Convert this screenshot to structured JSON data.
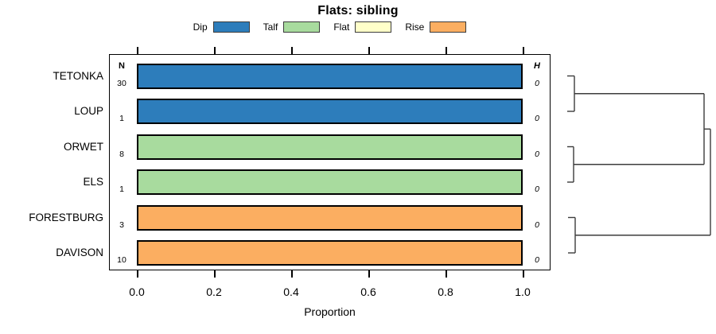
{
  "title": "Flats: sibling",
  "legend": {
    "items": [
      {
        "label": "Dip",
        "color": "#2D7DBB"
      },
      {
        "label": "Talf",
        "color": "#A8DB9E"
      },
      {
        "label": "Flat",
        "color": "#FFFFC9"
      },
      {
        "label": "Rise",
        "color": "#FBAE61"
      }
    ]
  },
  "columns": {
    "n_header": "N",
    "h_header": "H"
  },
  "rows": [
    {
      "label": "TETONKA",
      "n": "30",
      "h": "0",
      "color": "#2D7DBB",
      "proportion": 1.0
    },
    {
      "label": "LOUP",
      "n": "1",
      "h": "0",
      "color": "#2D7DBB",
      "proportion": 1.0
    },
    {
      "label": "ORWET",
      "n": "8",
      "h": "0",
      "color": "#A8DB9E",
      "proportion": 1.0
    },
    {
      "label": "ELS",
      "n": "1",
      "h": "0",
      "color": "#A8DB9E",
      "proportion": 1.0
    },
    {
      "label": "FORESTBURG",
      "n": "3",
      "h": "0",
      "color": "#FBAE61",
      "proportion": 1.0
    },
    {
      "label": "DAVISON",
      "n": "10",
      "h": "0",
      "color": "#FBAE61",
      "proportion": 1.0
    }
  ],
  "axis": {
    "tick_labels": [
      "0.0",
      "0.2",
      "0.4",
      "0.6",
      "0.8",
      "1.0"
    ],
    "label": "Proportion"
  },
  "chart_data": {
    "type": "bar",
    "orientation": "horizontal",
    "title": "Flats: sibling",
    "xlabel": "Proportion",
    "xlim": [
      0,
      1
    ],
    "xticks": [
      0.0,
      0.2,
      0.4,
      0.6,
      0.8,
      1.0
    ],
    "categories": [
      "TETONKA",
      "LOUP",
      "ORWET",
      "ELS",
      "FORESTBURG",
      "DAVISON"
    ],
    "n_values": [
      30,
      1,
      8,
      1,
      3,
      10
    ],
    "h_values": [
      0,
      0,
      0,
      0,
      0,
      0
    ],
    "legend_entries": [
      "Dip",
      "Talf",
      "Flat",
      "Rise"
    ],
    "legend_position": "top",
    "grid": false,
    "series": [
      {
        "name": "Dip",
        "values": [
          1,
          1,
          0,
          0,
          0,
          0
        ]
      },
      {
        "name": "Talf",
        "values": [
          0,
          0,
          1,
          1,
          0,
          0
        ]
      },
      {
        "name": "Flat",
        "values": [
          0,
          0,
          0,
          0,
          0,
          0
        ]
      },
      {
        "name": "Rise",
        "values": [
          0,
          0,
          0,
          0,
          1,
          1
        ]
      }
    ],
    "dendrogram_structure": "(((TETONKA,LOUP),(ORWET,ELS)),(FORESTBURG,DAVISON))"
  },
  "dendrogram": {
    "stroke": "#3c3c3c",
    "segments": [
      [
        713,
        95.5,
        722,
        95.5
      ],
      [
        713,
        140,
        722,
        140
      ],
      [
        722,
        95.5,
        722,
        140
      ],
      [
        722,
        117.75,
        885,
        117.75
      ],
      [
        713,
        184.5,
        721,
        184.5
      ],
      [
        713,
        229,
        721,
        229
      ],
      [
        721,
        184.5,
        721,
        229
      ],
      [
        721,
        206.75,
        885,
        206.75
      ],
      [
        885,
        117.75,
        885,
        206.75
      ],
      [
        885,
        162.25,
        893,
        162.25
      ],
      [
        714,
        273.5,
        723,
        273.5
      ],
      [
        714,
        318,
        723,
        318
      ],
      [
        723,
        273.5,
        723,
        318
      ],
      [
        723,
        295.75,
        893,
        295.75
      ],
      [
        893,
        162.25,
        893,
        295.75
      ]
    ]
  }
}
